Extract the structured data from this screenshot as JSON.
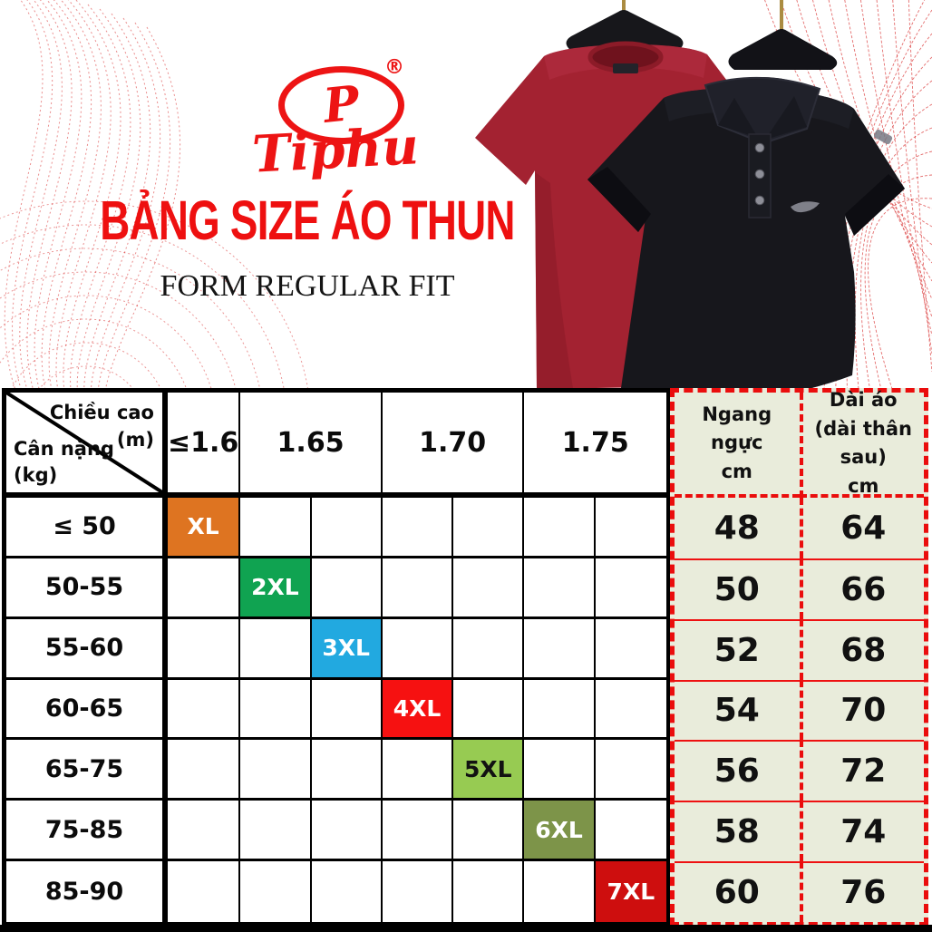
{
  "brand": {
    "name": "Tiphu",
    "monogram": "P",
    "registered": "®"
  },
  "header": {
    "title": "BẢNG SIZE ÁO THUN",
    "subtitle": "FORM REGULAR FIT"
  },
  "illustrations": {
    "left_shirt": "red-crewneck-tshirt-on-hanger",
    "right_shirt": "black-polo-shirt-on-hanger",
    "background": "red-dotted-mesh-curves"
  },
  "table": {
    "corner": {
      "top_label": "Chiều cao",
      "top_unit": "(m)",
      "bottom_label": "Cân nặng",
      "bottom_unit": "(kg)"
    },
    "height_headers": [
      {
        "label": "≤1.6",
        "span": 1
      },
      {
        "label": "1.65",
        "span": 2
      },
      {
        "label": "1.70",
        "span": 2
      },
      {
        "label": "1.75",
        "span": 2
      }
    ],
    "measure_headers": [
      {
        "lines": [
          "Ngang ngực",
          "cm"
        ]
      },
      {
        "lines": [
          "Dài áo",
          "(dài thân sau)",
          "cm"
        ]
      }
    ],
    "rows": [
      {
        "weight": "≤ 50",
        "size": "XL",
        "column": 1,
        "chest": "48",
        "length": "64",
        "cell_color": "#de7421",
        "cell_text_color": "#ffffff"
      },
      {
        "weight": "50-55",
        "size": "2XL",
        "column": 2,
        "chest": "50",
        "length": "66",
        "cell_color": "#10a351",
        "cell_text_color": "#ffffff"
      },
      {
        "weight": "55-60",
        "size": "3XL",
        "column": 3,
        "chest": "52",
        "length": "68",
        "cell_color": "#22a9e0",
        "cell_text_color": "#ffffff"
      },
      {
        "weight": "60-65",
        "size": "4XL",
        "column": 4,
        "chest": "54",
        "length": "70",
        "cell_color": "#f61111",
        "cell_text_color": "#ffffff"
      },
      {
        "weight": "65-75",
        "size": "5XL",
        "column": 5,
        "chest": "56",
        "length": "72",
        "cell_color": "#97cb52",
        "cell_text_color": "#121212"
      },
      {
        "weight": "75-85",
        "size": "6XL",
        "column": 6,
        "chest": "58",
        "length": "74",
        "cell_color": "#7d9449",
        "cell_text_color": "#ffffff"
      },
      {
        "weight": "85-90",
        "size": "7XL",
        "column": 7,
        "chest": "60",
        "length": "76",
        "cell_color": "#ce0e0e",
        "cell_text_color": "#ffffff"
      }
    ]
  },
  "colors": {
    "accent_red": "#ee1010",
    "logo_red": "#ed1414",
    "dashed_border_red": "#ea0d0d",
    "panel_green_bg": "#e9ecdb",
    "table_line_black": "#000000"
  }
}
